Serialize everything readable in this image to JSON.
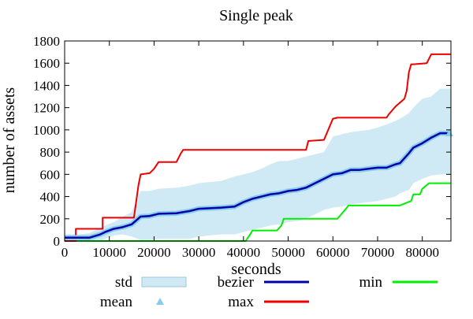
{
  "chart_data": {
    "type": "line",
    "title": "Single peak",
    "xlabel": "seconds",
    "ylabel": "number of assets",
    "xlim": [
      0,
      86400
    ],
    "ylim": [
      0,
      1800
    ],
    "x_ticks": [
      0,
      10000,
      20000,
      30000,
      40000,
      50000,
      60000,
      70000,
      80000
    ],
    "y_ticks": [
      0,
      200,
      400,
      600,
      800,
      1000,
      1200,
      1400,
      1600,
      1800
    ],
    "grid": false,
    "legend_position": "bottom",
    "legend": [
      {
        "label": "std",
        "kind": "band"
      },
      {
        "label": "mean",
        "kind": "marker"
      },
      {
        "label": "bezier",
        "kind": "line"
      },
      {
        "label": "max",
        "kind": "line"
      },
      {
        "label": "min",
        "kind": "line"
      }
    ],
    "colors": {
      "std": "#cfe9f5",
      "mean": "#87ceeb",
      "bezier": "#0000aa",
      "max": "#ee0000",
      "min": "#00ee00"
    },
    "series": [
      {
        "name": "max",
        "x": [
          0,
          2500,
          2500,
          8500,
          8500,
          15500,
          16500,
          17000,
          19000,
          20000,
          21000,
          25000,
          26000,
          26500,
          40000,
          54000,
          54500,
          58000,
          60000,
          61000,
          72000,
          72500,
          74000,
          76000,
          76500,
          77000,
          77500,
          78000,
          81000,
          82000,
          86400
        ],
        "y": [
          0,
          0,
          110,
          110,
          210,
          210,
          500,
          600,
          610,
          650,
          710,
          710,
          790,
          820,
          820,
          820,
          900,
          910,
          1100,
          1110,
          1110,
          1140,
          1210,
          1280,
          1350,
          1520,
          1590,
          1590,
          1600,
          1680,
          1680
        ]
      },
      {
        "name": "min",
        "x": [
          0,
          40500,
          41500,
          42000,
          47500,
          48500,
          49000,
          55000,
          61000,
          62500,
          63500,
          75000,
          77500,
          78000,
          79500,
          80000,
          81500,
          82500,
          86400
        ],
        "y": [
          0,
          0,
          60,
          95,
          95,
          140,
          200,
          200,
          200,
          270,
          320,
          320,
          360,
          420,
          420,
          470,
          520,
          520,
          520
        ]
      },
      {
        "name": "bezier",
        "x": [
          0,
          3000,
          5500,
          8000,
          9000,
          11000,
          13000,
          15000,
          17000,
          19000,
          21000,
          25000,
          28000,
          30000,
          35000,
          38000,
          40000,
          42000,
          44000,
          46000,
          48000,
          50000,
          52000,
          54000,
          56000,
          58000,
          60000,
          62000,
          64000,
          66000,
          68000,
          70000,
          72000,
          74000,
          75000,
          77000,
          78000,
          80000,
          82000,
          84000,
          86400
        ],
        "y": [
          30,
          30,
          30,
          60,
          80,
          110,
          125,
          150,
          220,
          225,
          245,
          250,
          270,
          290,
          300,
          310,
          350,
          380,
          400,
          420,
          430,
          450,
          460,
          480,
          520,
          560,
          600,
          610,
          640,
          640,
          650,
          660,
          660,
          690,
          700,
          790,
          840,
          880,
          930,
          970,
          970
        ]
      },
      {
        "name": "std",
        "x": [
          0,
          3000,
          5500,
          8000,
          9000,
          11000,
          13000,
          15000,
          17000,
          19000,
          21000,
          25000,
          28000,
          30000,
          35000,
          38000,
          40000,
          42000,
          44000,
          46000,
          48000,
          50000,
          52000,
          54000,
          56000,
          58000,
          60000,
          62000,
          64000,
          66000,
          68000,
          70000,
          72000,
          74000,
          75000,
          77000,
          78000,
          80000,
          82000,
          84000,
          86400
        ],
        "upper": [
          60,
          60,
          70,
          120,
          140,
          170,
          220,
          260,
          450,
          450,
          470,
          480,
          500,
          520,
          540,
          580,
          600,
          620,
          650,
          690,
          720,
          720,
          740,
          760,
          780,
          800,
          940,
          960,
          980,
          990,
          1000,
          1020,
          1050,
          1080,
          1100,
          1150,
          1200,
          1280,
          1300,
          1370,
          1370
        ],
        "lower": [
          0,
          0,
          0,
          0,
          20,
          50,
          60,
          40,
          10,
          10,
          20,
          20,
          20,
          40,
          60,
          60,
          80,
          100,
          120,
          140,
          150,
          170,
          180,
          200,
          240,
          280,
          300,
          310,
          330,
          340,
          350,
          360,
          380,
          400,
          430,
          460,
          520,
          560,
          590,
          600,
          600
        ]
      }
    ]
  }
}
